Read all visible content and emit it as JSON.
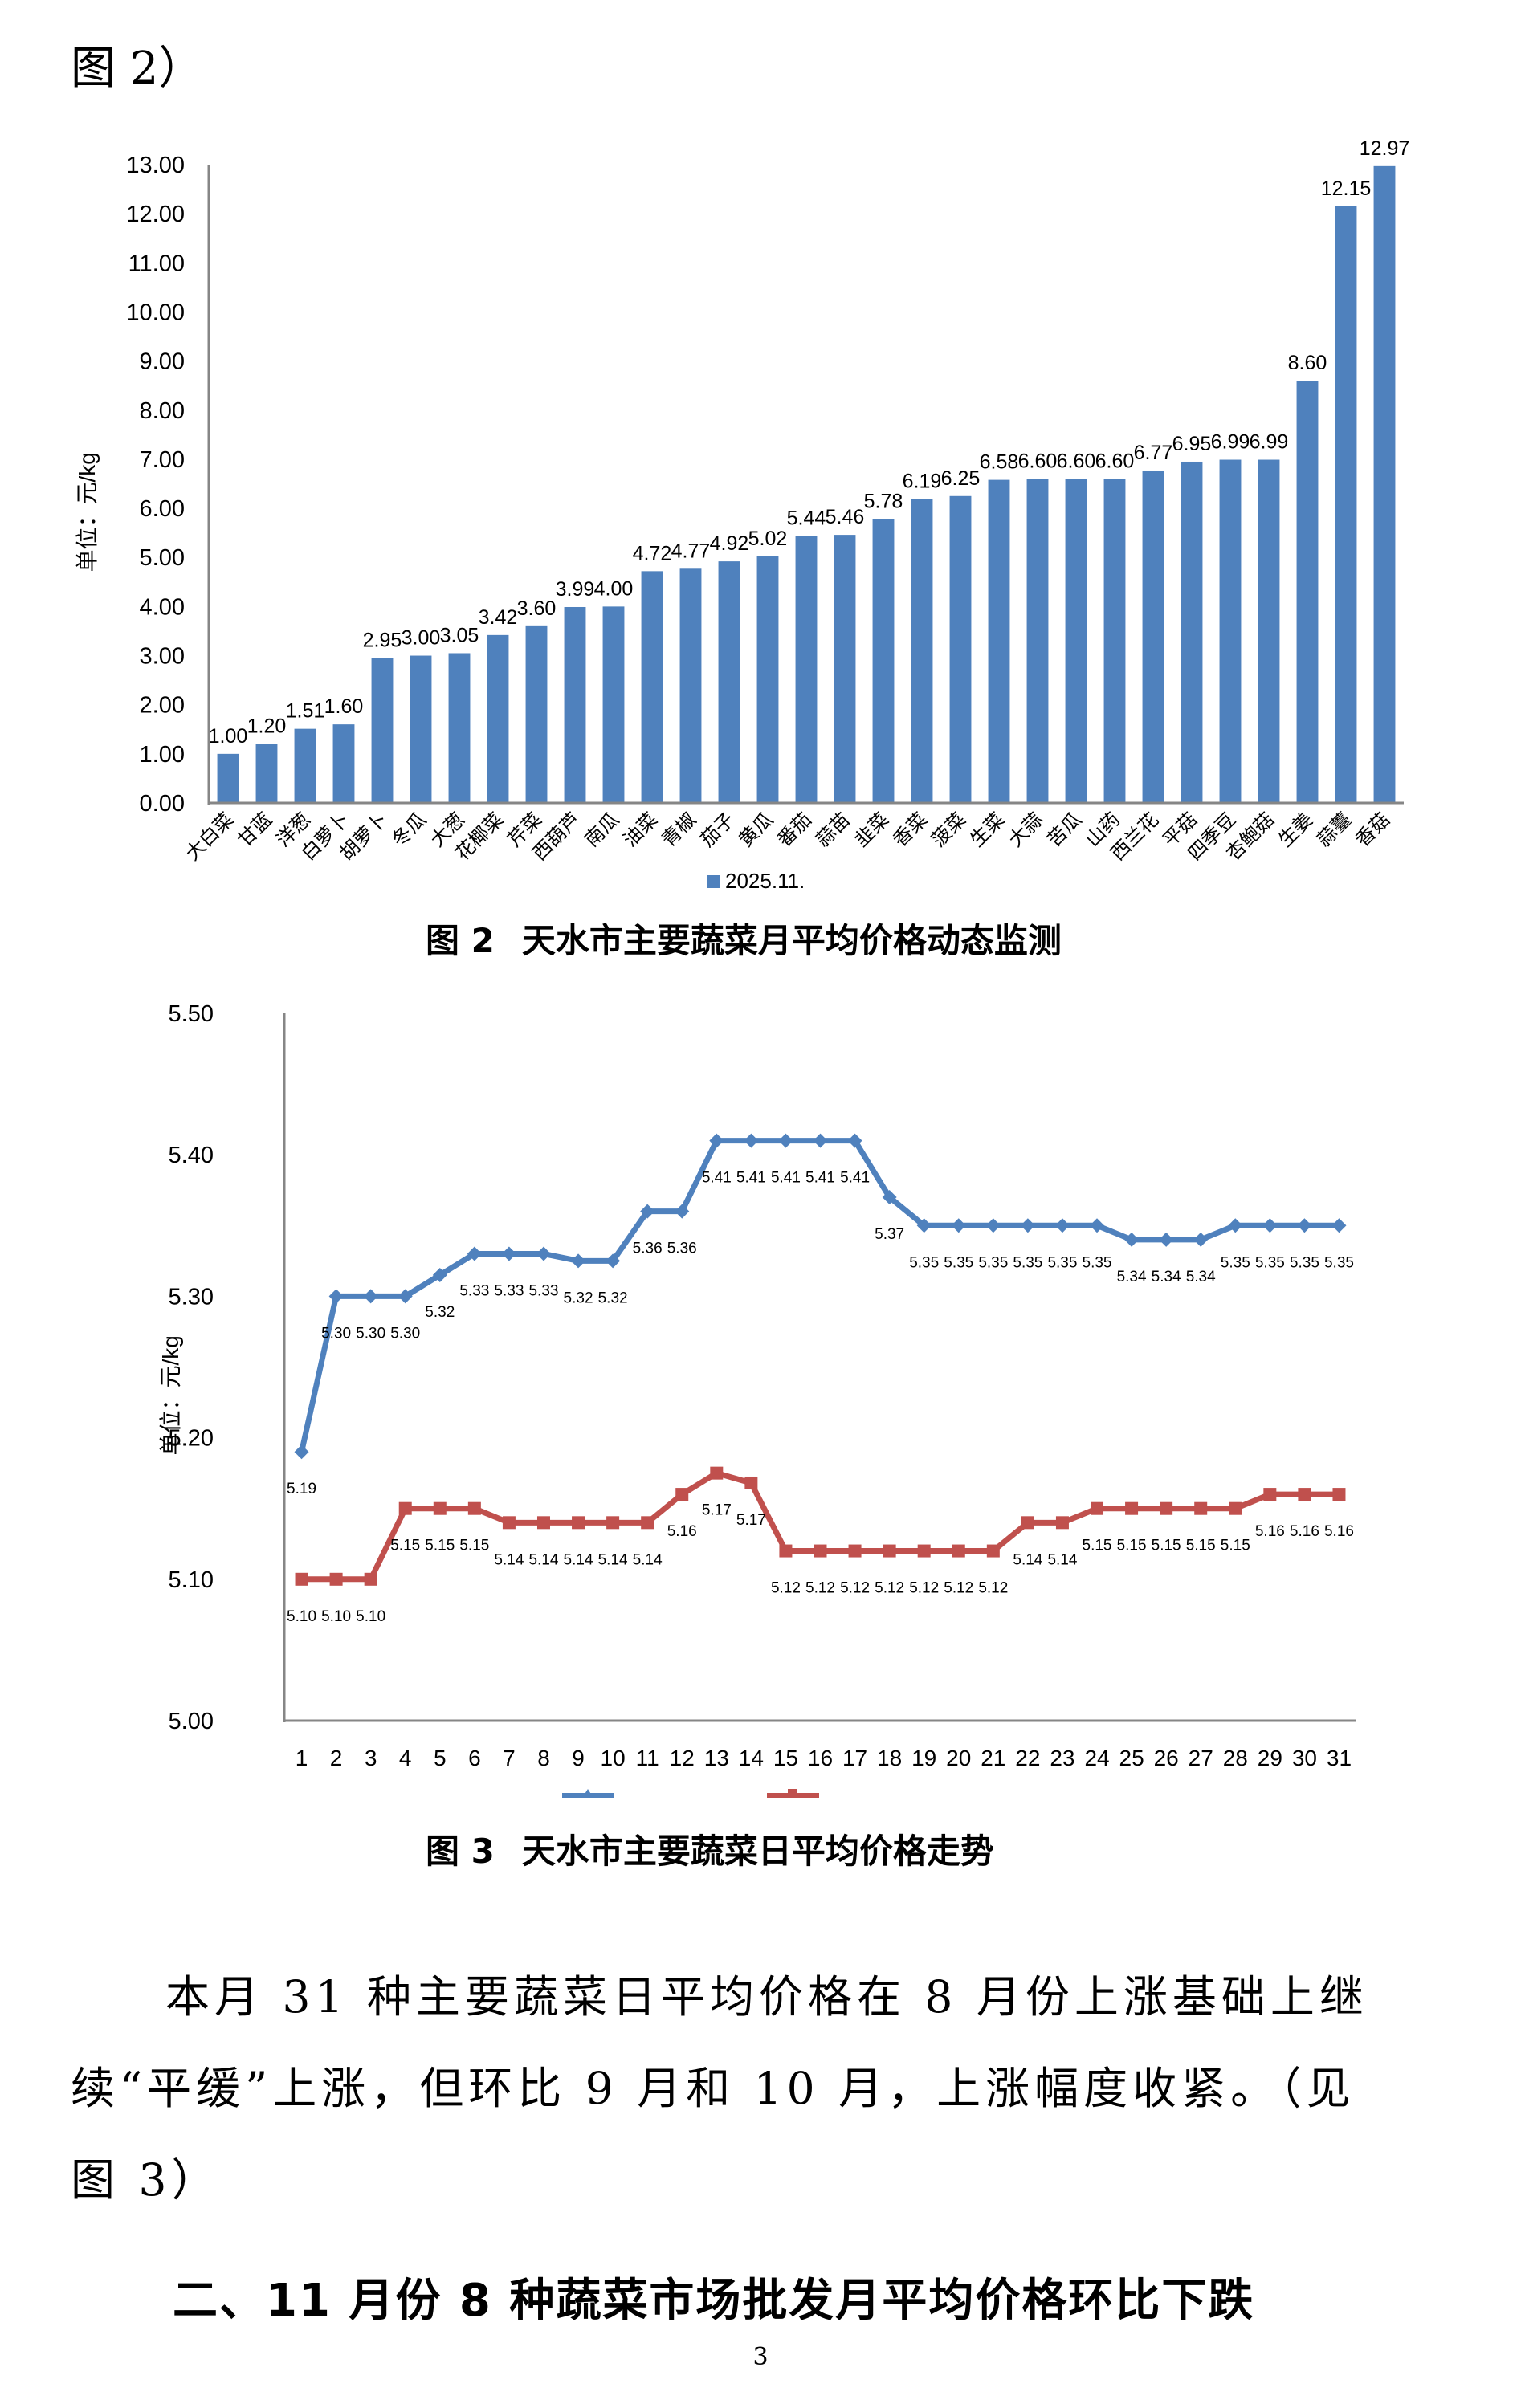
{
  "page": {
    "top_reference": "图 2）",
    "figure2_caption": {
      "number": "图 2",
      "title": "天水市主要蔬菜月平均价格动态监测"
    },
    "figure3_caption": {
      "number": "图 3",
      "title": "天水市主要蔬菜日平均价格走势"
    },
    "paragraph_lines": [
      "本月 31 种主要蔬菜日平均价格在 8 月份上涨基础上继",
      "续“平缓”上涨，但环比 9 月和 10 月，上涨幅度收紧。（见",
      "图 3）"
    ],
    "section_heading": "二、11 月份 8 种蔬菜市场批发月平均价格环比下跌",
    "page_number": "3"
  },
  "colors": {
    "bar": "#4F81BD",
    "series_blue": "#4F81BD",
    "series_red": "#C0504D",
    "axis": "#868686"
  },
  "chart_data": [
    {
      "type": "bar",
      "title": "图 2 天水市主要蔬菜月平均价格动态监测",
      "xlabel": "",
      "ylabel": "单位：元/kg",
      "ylim": [
        0,
        13
      ],
      "yticks": [
        "0.00",
        "1.00",
        "2.00",
        "3.00",
        "4.00",
        "5.00",
        "6.00",
        "7.00",
        "8.00",
        "9.00",
        "10.00",
        "11.00",
        "12.00",
        "13.00"
      ],
      "grid": false,
      "legend_position": "bottom",
      "categories": [
        "大白菜",
        "甘蓝",
        "洋葱",
        "白萝卜",
        "胡萝卜",
        "冬瓜",
        "大葱",
        "花椰菜",
        "芹菜",
        "西葫芦",
        "南瓜",
        "油菜",
        "青椒",
        "茄子",
        "黄瓜",
        "番茄",
        "蒜苗",
        "韭菜",
        "香菜",
        "菠菜",
        "生菜",
        "大蒜",
        "苦瓜",
        "山药",
        "西兰花",
        "平菇",
        "四季豆",
        "杏鲍菇",
        "生姜",
        "蒜薹",
        "香菇"
      ],
      "series": [
        {
          "name": "2025.11.",
          "values": [
            1.0,
            1.2,
            1.51,
            1.6,
            2.95,
            3.0,
            3.05,
            3.42,
            3.6,
            3.99,
            4.0,
            4.72,
            4.77,
            4.92,
            5.02,
            5.44,
            5.46,
            5.78,
            6.19,
            6.25,
            6.58,
            6.6,
            6.6,
            6.6,
            6.77,
            6.95,
            6.99,
            6.99,
            8.6,
            12.15,
            12.97
          ]
        }
      ]
    },
    {
      "type": "line",
      "title": "图 3 天水市主要蔬菜日平均价格走势",
      "xlabel": "",
      "ylabel": "单位：元/kg",
      "ylim": [
        5.0,
        5.5
      ],
      "yticks": [
        "5.00",
        "5.10",
        "5.20",
        "5.30",
        "5.40",
        "5.50"
      ],
      "grid": false,
      "legend_position": "bottom",
      "x": [
        "1",
        "2",
        "3",
        "4",
        "5",
        "6",
        "7",
        "8",
        "9",
        "10",
        "11",
        "12",
        "13",
        "14",
        "15",
        "16",
        "17",
        "18",
        "19",
        "20",
        "21",
        "22",
        "23",
        "24",
        "25",
        "26",
        "27",
        "28",
        "29",
        "30",
        "31"
      ],
      "series": [
        {
          "name": "",
          "marker": "diamond",
          "values": [
            5.19,
            5.3,
            5.3,
            5.3,
            5.315,
            5.33,
            5.33,
            5.33,
            5.325,
            5.325,
            5.36,
            5.36,
            5.41,
            5.41,
            5.41,
            5.41,
            5.41,
            5.37,
            5.35,
            5.35,
            5.35,
            5.35,
            5.35,
            5.35,
            5.34,
            5.34,
            5.34,
            5.35,
            5.35,
            5.35,
            5.35
          ],
          "labels": [
            "5.19",
            "5.30",
            "5.30",
            "5.30",
            "5.32",
            "5.33",
            "5.33",
            "5.33",
            "5.32",
            "5.32",
            "5.36",
            "5.36",
            "5.41",
            "5.41",
            "5.41",
            "5.41",
            "5.41",
            "5.37",
            "5.35",
            "5.35",
            "5.35",
            "5.35",
            "5.35",
            "5.35",
            "5.34",
            "5.34",
            "5.34",
            "5.35",
            "5.35",
            "5.35",
            "5.35"
          ]
        },
        {
          "name": "",
          "marker": "square",
          "values": [
            5.1,
            5.1,
            5.1,
            5.15,
            5.15,
            5.15,
            5.14,
            5.14,
            5.14,
            5.14,
            5.14,
            5.16,
            5.175,
            5.168,
            5.12,
            5.12,
            5.12,
            5.12,
            5.12,
            5.12,
            5.12,
            5.14,
            5.14,
            5.15,
            5.15,
            5.15,
            5.15,
            5.15,
            5.16,
            5.16,
            5.16
          ],
          "labels": [
            "5.10",
            "5.10",
            "5.10",
            "5.15",
            "5.15",
            "5.15",
            "5.14",
            "5.14",
            "5.14",
            "5.14",
            "5.14",
            "5.16",
            "5.17",
            "5.17",
            "5.12",
            "5.12",
            "5.12",
            "5.12",
            "5.12",
            "5.12",
            "5.12",
            "5.14",
            "5.14",
            "5.15",
            "5.15",
            "5.15",
            "5.15",
            "5.15",
            "5.16",
            "5.16",
            "5.16"
          ]
        }
      ]
    }
  ]
}
